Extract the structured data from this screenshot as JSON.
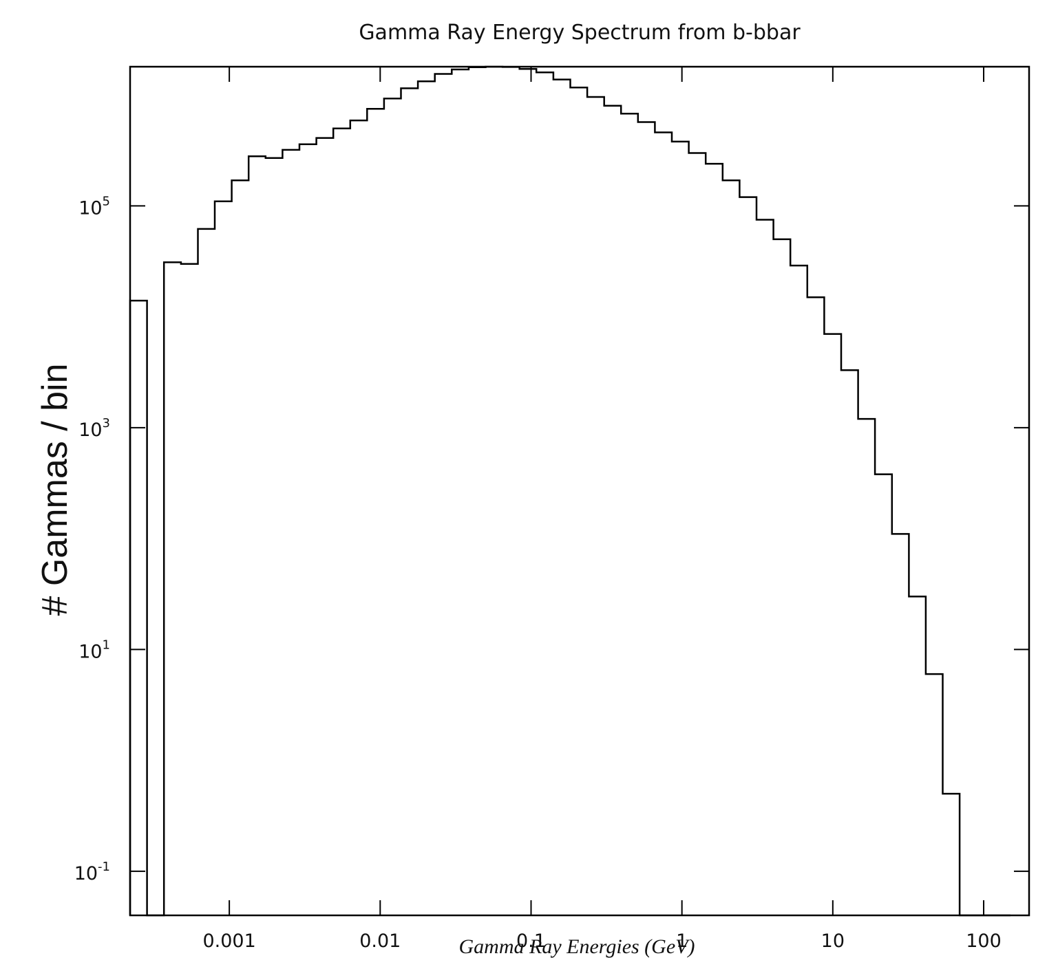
{
  "chart_data": {
    "type": "histogram",
    "title": "Gamma Ray Energy Spectrum from b-bbar",
    "xlabel": "Gamma Ray Energies (GeV)",
    "ylabel": "# Gammas / bin",
    "xscale": "log",
    "yscale": "log",
    "xlim": [
      0.00022,
      200
    ],
    "ylim": [
      0.04,
      1800000
    ],
    "x_ticks": [
      {
        "value": 0.001,
        "label": "0.001"
      },
      {
        "value": 0.01,
        "label": "0.01"
      },
      {
        "value": 0.1,
        "label": "0.1"
      },
      {
        "value": 1,
        "label": "1"
      },
      {
        "value": 10,
        "label": "10"
      },
      {
        "value": 100,
        "label": "100"
      }
    ],
    "y_ticks": [
      {
        "value": 0.1,
        "base": "10",
        "exp": "-1"
      },
      {
        "value": 10,
        "base": "10",
        "exp": "1"
      },
      {
        "value": 1000,
        "base": "10",
        "exp": "3"
      },
      {
        "value": 100000,
        "base": "10",
        "exp": "5"
      }
    ],
    "grid": false,
    "bin_edges": [
      0.00022,
      0.000285,
      0.000369,
      0.000478,
      0.000619,
      0.000801,
      0.001037,
      0.001343,
      0.001739,
      0.002252,
      0.002916,
      0.003775,
      0.004887,
      0.006329,
      0.008194,
      0.01061,
      0.01374,
      0.01779,
      0.02303,
      0.02982,
      0.03861,
      0.05,
      0.06474,
      0.08383,
      0.1085,
      0.1405,
      0.182,
      0.2356,
      0.3051,
      0.395,
      0.5115,
      0.6623,
      0.8575,
      1.11,
      1.438,
      1.862,
      2.411,
      3.121,
      4.041,
      5.233,
      6.775,
      8.773,
      11.36,
      14.71,
      19.04,
      24.66,
      31.93,
      41.34,
      53.53,
      69.31,
      89.75,
      116.2,
      150.5
    ],
    "counts": [
      14000,
      0,
      31000,
      30000,
      62000,
      110000,
      170000,
      280000,
      270000,
      320000,
      360000,
      410000,
      500000,
      590000,
      750000,
      930000,
      1150000,
      1330000,
      1550000,
      1700000,
      1780000,
      1820000,
      1790000,
      1720000,
      1600000,
      1380000,
      1170000,
      960000,
      800000,
      680000,
      570000,
      460000,
      380000,
      300000,
      240000,
      170000,
      120000,
      75000,
      50000,
      29000,
      15000,
      7000,
      3300,
      1200,
      380,
      110,
      30,
      6,
      0.5,
      0,
      0,
      0
    ]
  }
}
